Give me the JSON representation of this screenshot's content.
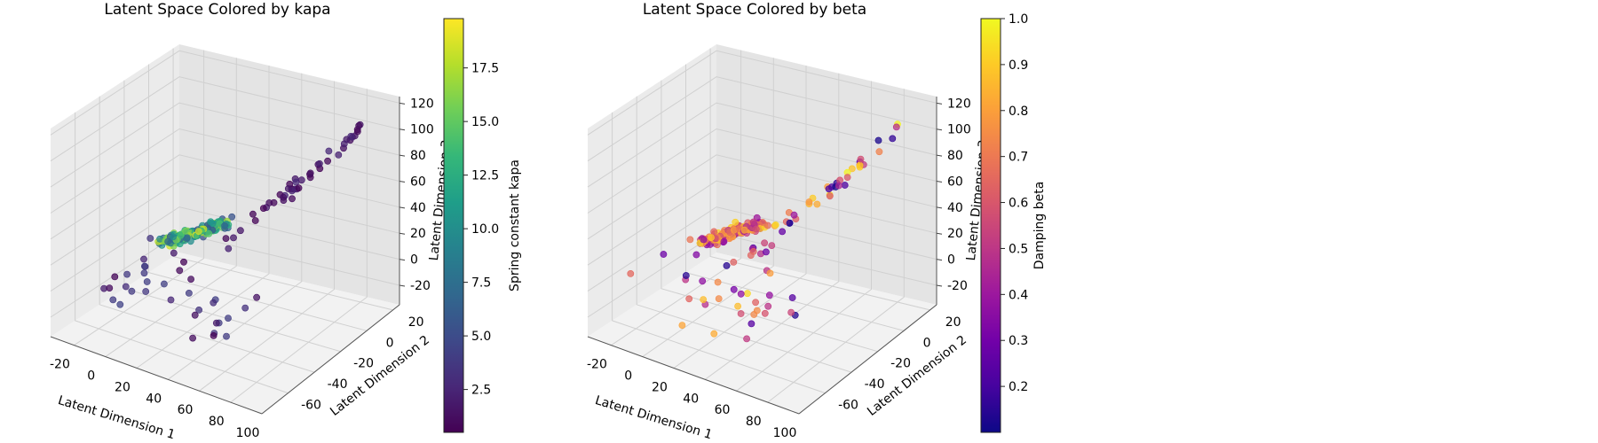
{
  "chart_data": [
    {
      "type": "scatter",
      "subtype": "3d",
      "title": "Latent Space Colored by kapa",
      "xlabel": "Latent Dimension 1",
      "ylabel": "Latent Dimension 2",
      "zlabel": "Latent Dimension 3",
      "xlim": [
        -35,
        100
      ],
      "ylim": [
        -80,
        25
      ],
      "zlim": [
        -35,
        125
      ],
      "xticks": [
        "-20",
        "0",
        "20",
        "40",
        "60",
        "80",
        "100"
      ],
      "yticks": [
        "-60",
        "-40",
        "-20",
        "0",
        "20"
      ],
      "zticks": [
        "-20",
        "0",
        "20",
        "40",
        "60",
        "80",
        "100",
        "120"
      ],
      "colorbar": {
        "label": "Spring constant kapa",
        "colormap": "viridis",
        "range": [
          0.5,
          19.8
        ],
        "ticks": [
          "2.5",
          "5.0",
          "7.5",
          "10.0",
          "12.5",
          "15.0",
          "17.5"
        ]
      },
      "grid": true
    },
    {
      "type": "scatter",
      "subtype": "3d",
      "title": "Latent Space Colored by beta",
      "xlabel": "Latent Dimension 1",
      "ylabel": "Latent Dimension 2",
      "zlabel": "Latent Dimension 3",
      "xlim": [
        -35,
        100
      ],
      "ylim": [
        -80,
        25
      ],
      "zlim": [
        -35,
        125
      ],
      "xticks": [
        "-20",
        "0",
        "20",
        "40",
        "60",
        "80",
        "100"
      ],
      "yticks": [
        "-60",
        "-40",
        "-20",
        "0",
        "20"
      ],
      "zticks": [
        "-20",
        "0",
        "20",
        "40",
        "60",
        "80",
        "100",
        "120"
      ],
      "colorbar": {
        "label": "Damping beta",
        "colormap": "plasma",
        "range": [
          0.1,
          1.0
        ],
        "ticks": [
          "0.2",
          "0.3",
          "0.4",
          "0.5",
          "0.6",
          "0.7",
          "0.8",
          "0.9",
          "1.0"
        ]
      },
      "grid": true
    }
  ],
  "colors": {
    "pane_left": "#ebebeb",
    "pane_right": "#e4e4e4",
    "pane_floor": "#f2f2f2",
    "grid": "#d0d0d0"
  }
}
